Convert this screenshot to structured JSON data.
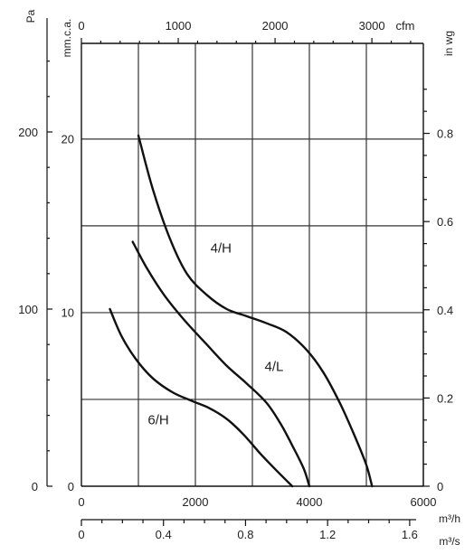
{
  "chart_data": {
    "type": "line",
    "x_primary": {
      "unit": "m³/h",
      "range": [
        0,
        6000
      ],
      "ticks": [
        0,
        2000,
        4000,
        6000
      ]
    },
    "x_secondary_top": {
      "unit": "cfm",
      "ticks": [
        0,
        1000,
        2000,
        3000
      ]
    },
    "x_secondary_bottom": {
      "unit": "m³/s",
      "ticks": [
        "0",
        "0.4",
        "0.8",
        "1.2",
        "1.6"
      ]
    },
    "y_primary": {
      "unit": "Pa",
      "range": [
        0,
        250
      ],
      "ticks": [
        0,
        100,
        200
      ]
    },
    "y_secondary_left": {
      "unit": "mm.c.a.",
      "ticks": [
        0,
        10,
        20
      ]
    },
    "y_secondary_right": {
      "unit": "in wg",
      "ticks": [
        "0",
        "0.2",
        "0.4",
        "0.6",
        "0.8"
      ]
    },
    "grid": true,
    "series": [
      {
        "name": "4/H",
        "points": [
          [
            1000,
            198
          ],
          [
            1250,
            168
          ],
          [
            1550,
            140
          ],
          [
            1850,
            120
          ],
          [
            2200,
            108
          ],
          [
            2550,
            100
          ],
          [
            2900,
            96
          ],
          [
            3250,
            92
          ],
          [
            3600,
            87
          ],
          [
            3950,
            77
          ],
          [
            4250,
            64
          ],
          [
            4550,
            46
          ],
          [
            4800,
            28
          ],
          [
            5000,
            12
          ],
          [
            5100,
            0
          ]
        ]
      },
      {
        "name": "4/L",
        "points": [
          [
            900,
            138
          ],
          [
            1150,
            123
          ],
          [
            1450,
            108
          ],
          [
            1800,
            94
          ],
          [
            2200,
            80
          ],
          [
            2550,
            68
          ],
          [
            2900,
            58
          ],
          [
            3250,
            47
          ],
          [
            3500,
            35
          ],
          [
            3700,
            23
          ],
          [
            3900,
            10
          ],
          [
            4000,
            0
          ]
        ]
      },
      {
        "name": "6/H",
        "points": [
          [
            500,
            100
          ],
          [
            700,
            85
          ],
          [
            950,
            72
          ],
          [
            1250,
            61
          ],
          [
            1600,
            53
          ],
          [
            1950,
            48
          ],
          [
            2250,
            44
          ],
          [
            2550,
            38
          ],
          [
            2850,
            29
          ],
          [
            3150,
            18
          ],
          [
            3450,
            8
          ],
          [
            3700,
            0
          ]
        ]
      }
    ]
  }
}
